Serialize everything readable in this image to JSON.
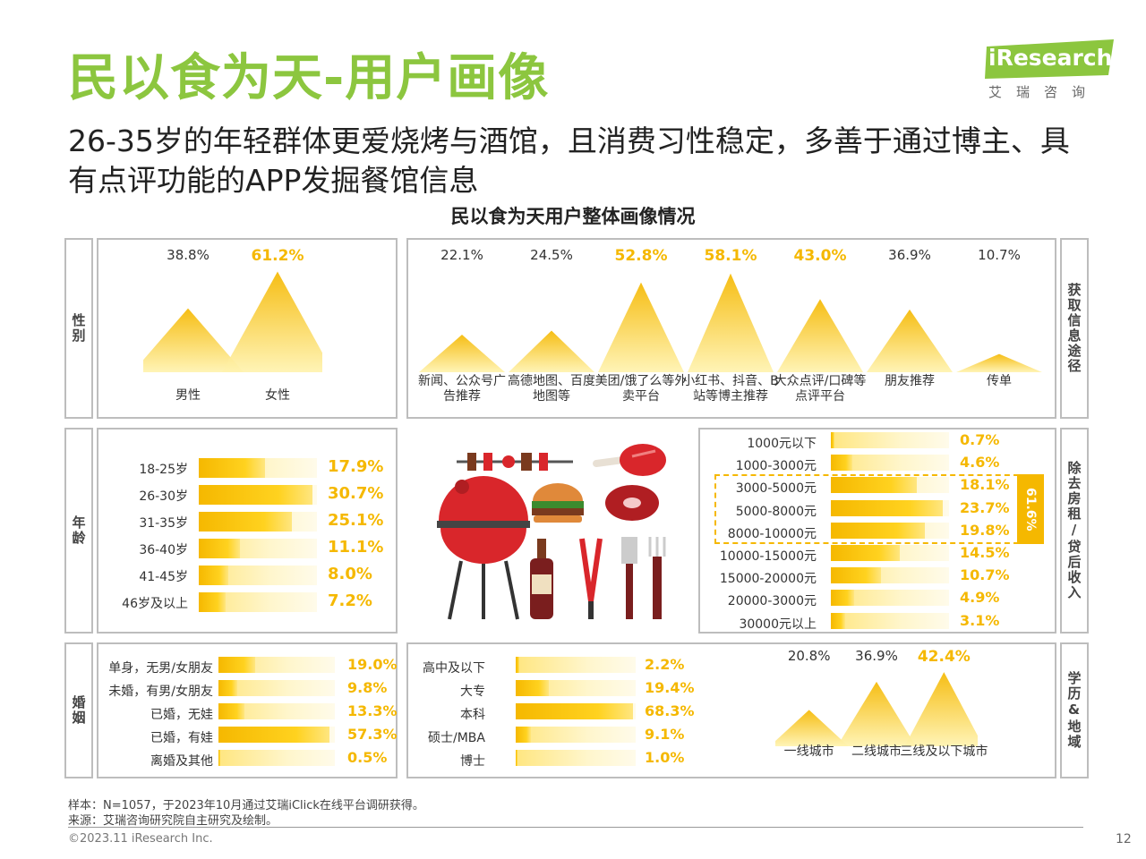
{
  "header": {
    "title": "民以食为天-用户画像",
    "subtitle": "26-35岁的年轻群体更爱烧烤与酒馆，且消费习性稳定，多善于通过博主、具有点评功能的APP发掘餐馆信息",
    "logo_text": "iResearch",
    "logo_cn": "艾瑞咨询",
    "chart_title": "民以食为天用户整体画像情况"
  },
  "labels": {
    "gender": "性别",
    "channel": "获取信息途径",
    "age": "年龄",
    "income": "除去房租/贷后收入",
    "marital": "婚姻",
    "edu_region": "学历&地域",
    "income_bracket": "61.6%"
  },
  "chart_data": [
    {
      "type": "area",
      "name": "性别",
      "categories": [
        "男性",
        "女性"
      ],
      "values": [
        38.8,
        61.2
      ],
      "labels": [
        "38.8%",
        "61.2%"
      ],
      "highlight": [
        false,
        true
      ]
    },
    {
      "type": "area",
      "name": "获取信息途径",
      "categories": [
        "新闻、公众号广告推荐",
        "高德地图、百度地图等",
        "美团/饿了么等外卖平台",
        "小红书、抖音、B站等博主推荐",
        "大众点评/口碑等点评平台",
        "朋友推荐",
        "传单"
      ],
      "values": [
        22.1,
        24.5,
        52.8,
        58.1,
        43.0,
        36.9,
        10.7
      ],
      "labels": [
        "22.1%",
        "24.5%",
        "52.8%",
        "58.1%",
        "43.0%",
        "36.9%",
        "10.7%"
      ],
      "highlight": [
        false,
        false,
        true,
        true,
        true,
        false,
        false
      ]
    },
    {
      "type": "bar",
      "name": "年龄",
      "categories": [
        "18-25岁",
        "26-30岁",
        "31-35岁",
        "36-40岁",
        "41-45岁",
        "46岁及以上"
      ],
      "values": [
        17.9,
        30.7,
        25.1,
        11.1,
        8.0,
        7.2
      ],
      "labels": [
        "17.9%",
        "30.7%",
        "25.1%",
        "11.1%",
        "8.0%",
        "7.2%"
      ]
    },
    {
      "type": "bar",
      "name": "除去房租/贷后收入",
      "categories": [
        "1000元以下",
        "1000-3000元",
        "3000-5000元",
        "5000-8000元",
        "8000-10000元",
        "10000-15000元",
        "15000-20000元",
        "20000-3000元",
        "30000元以上"
      ],
      "values": [
        0.7,
        4.6,
        18.1,
        23.7,
        19.8,
        14.5,
        10.7,
        4.9,
        3.1
      ],
      "labels": [
        "0.7%",
        "4.6%",
        "18.1%",
        "23.7%",
        "19.8%",
        "14.5%",
        "10.7%",
        "4.9%",
        "3.1%"
      ]
    },
    {
      "type": "bar",
      "name": "婚姻",
      "categories": [
        "单身，无男/女朋友",
        "未婚，有男/女朋友",
        "已婚，无娃",
        "已婚，有娃",
        "离婚及其他"
      ],
      "values": [
        19.0,
        9.8,
        13.3,
        57.3,
        0.5
      ],
      "labels": [
        "19.0%",
        "9.8%",
        "13.3%",
        "57.3%",
        "0.5%"
      ]
    },
    {
      "type": "bar",
      "name": "学历",
      "categories": [
        "高中及以下",
        "大专",
        "本科",
        "硕士/MBA",
        "博士"
      ],
      "values": [
        2.2,
        19.4,
        68.3,
        9.1,
        1.0
      ],
      "labels": [
        "2.2%",
        "19.4%",
        "68.3%",
        "9.1%",
        "1.0%"
      ]
    },
    {
      "type": "area",
      "name": "地域",
      "categories": [
        "一线城市",
        "二线城市",
        "三线及以下城市"
      ],
      "values": [
        20.8,
        36.9,
        42.4
      ],
      "labels": [
        "20.8%",
        "36.9%",
        "42.4%"
      ],
      "highlight": [
        false,
        false,
        true
      ]
    }
  ],
  "footer": {
    "sample": "样本：N=1057，于2023年10月通过艾瑞iClick在线平台调研获得。",
    "source": "来源：艾瑞咨询研究院自主研究及绘制。",
    "copyright": "©2023.11 iResearch Inc.",
    "page": "12"
  },
  "colors": {
    "title": "#8CC63F",
    "accent": "#F5B800",
    "accent_light": "#FFE680",
    "border": "#bdbdbd",
    "grill": "#D9262B"
  }
}
